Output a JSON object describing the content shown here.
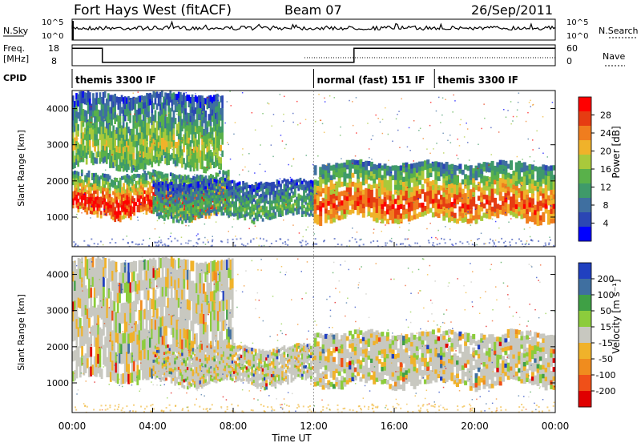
{
  "header": {
    "station": "Fort Hays West (fitACF)",
    "beam": "Beam 07",
    "date": "26/Sep/2011"
  },
  "top_panels": {
    "nsky_label": "N.Sky",
    "nsky_ticks": [
      "10^5",
      "10^0"
    ],
    "nsearch_label": "N.Search",
    "nsearch_ticks": [
      "10^5",
      "10^0"
    ],
    "freq_label": "Freq.",
    "freq_unit": "[MHz]",
    "freq_ticks": [
      "18",
      "8"
    ],
    "nave_label": "Nave",
    "nave_ticks": [
      "60",
      "0"
    ],
    "cpid_label": "CPID"
  },
  "cpid_segments": [
    {
      "label": "themis 3300 IF",
      "start": 0,
      "end": 12
    },
    {
      "label": "normal (fast) 151 IF",
      "start": 12,
      "end": 18
    },
    {
      "label": "themis 3300 IF",
      "start": 18,
      "end": 24
    }
  ],
  "freq_trace": [
    [
      0,
      16
    ],
    [
      1.5,
      16
    ],
    [
      1.5,
      8
    ],
    [
      14,
      8
    ],
    [
      14,
      16
    ],
    [
      24,
      16
    ]
  ],
  "chart_data": [
    {
      "type": "heatmap",
      "title": "",
      "ylabel": "Slant Range [km]",
      "xlabel": "Time UT",
      "x": [
        "00:00",
        "04:00",
        "08:00",
        "12:00",
        "16:00",
        "20:00",
        "00:00"
      ],
      "y_ticks": [
        "4000",
        "3000",
        "2000",
        "1000"
      ],
      "ylim": [
        180,
        4500
      ],
      "colorbar": {
        "label": "Power [dB]",
        "ticks": [
          "28",
          "24",
          "20",
          "16",
          "12",
          "8",
          "4"
        ],
        "range": [
          0,
          32
        ],
        "colors": [
          "#0000ff",
          "#2b46b4",
          "#3f6fa0",
          "#3f9a6a",
          "#59b14a",
          "#a9c93b",
          "#f0b22a",
          "#f07d1e",
          "#e63c12",
          "#ff0000"
        ]
      },
      "bands": [
        {
          "t0": 0,
          "t1": 7.5,
          "r0": 2400,
          "r1": 4400,
          "level": 0.45
        },
        {
          "t0": 0,
          "t1": 7.8,
          "r0": 1050,
          "r1": 2200,
          "level": 0.85
        },
        {
          "t0": 4,
          "t1": 12,
          "r0": 1000,
          "r1": 2000,
          "level": 0.35
        },
        {
          "t0": 12,
          "t1": 24,
          "r0": 950,
          "r1": 2500,
          "level": 0.75
        }
      ]
    },
    {
      "type": "heatmap",
      "title": "",
      "ylabel": "Slant Range [km]",
      "xlabel": "Time UT",
      "x": [
        "00:00",
        "04:00",
        "08:00",
        "12:00",
        "16:00",
        "20:00",
        "00:00"
      ],
      "y_ticks": [
        "4000",
        "3000",
        "2000",
        "1000"
      ],
      "ylim": [
        180,
        4500
      ],
      "colorbar": {
        "label": "Velocity [m s⁻¹]",
        "ticks": [
          "200",
          "100",
          "50",
          "15",
          "-15",
          "-50",
          "-100",
          "-200"
        ],
        "range": [
          -250,
          250
        ],
        "colors": [
          "#e00000",
          "#f05018",
          "#f08c1e",
          "#f0b22a",
          "#c8c8c0",
          "#8ccc3c",
          "#3fa045",
          "#3f6fa0",
          "#2040c0"
        ]
      },
      "bands": [
        {
          "t0": 0,
          "t1": 8,
          "r0": 1100,
          "r1": 4400,
          "level": 0.5
        },
        {
          "t0": 4,
          "t1": 12,
          "r0": 1000,
          "r1": 2000,
          "level": 0.35
        },
        {
          "t0": 12,
          "t1": 24,
          "r0": 950,
          "r1": 2400,
          "level": 0.5
        }
      ]
    }
  ]
}
